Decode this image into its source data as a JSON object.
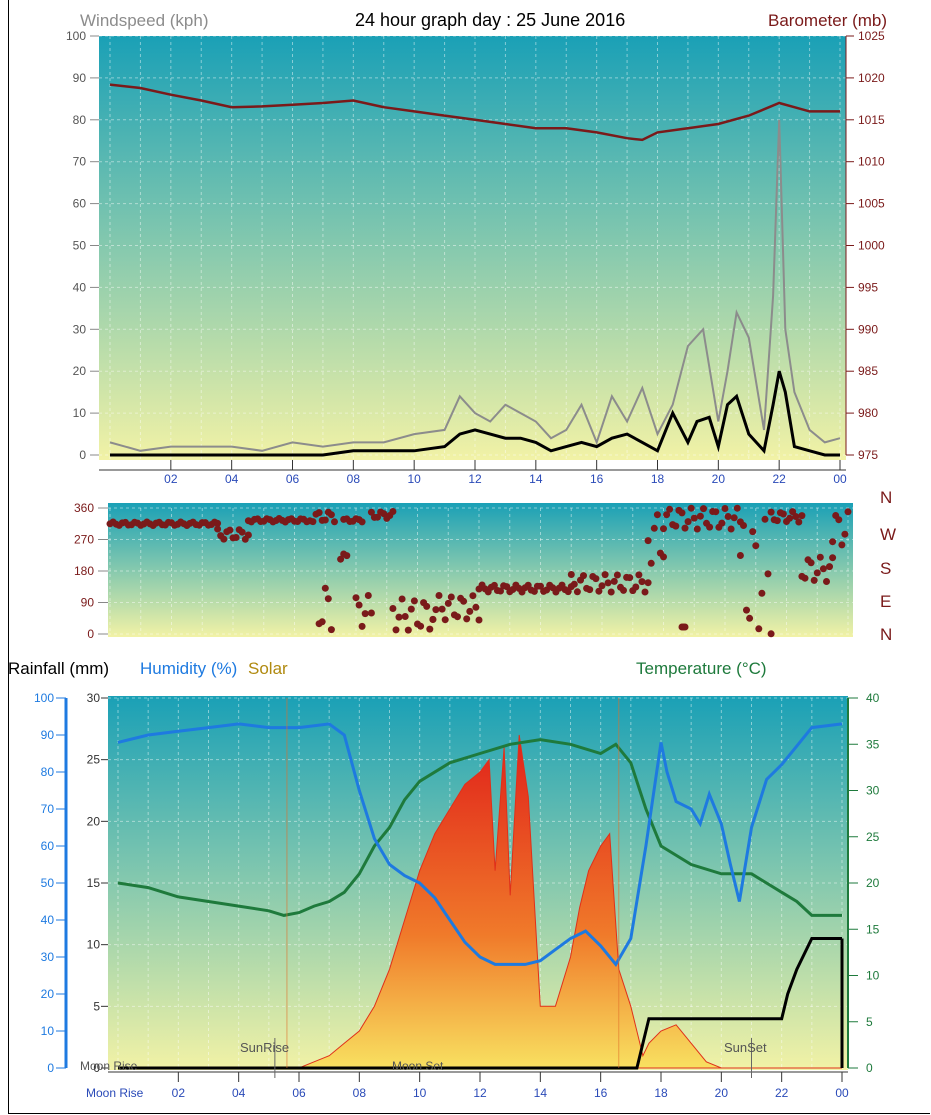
{
  "title": "24 hour graph day : 25 June 2016",
  "colors": {
    "barometer": "#7a1a1a",
    "wind_gust": "#8c8c8c",
    "wind_avg": "#000000",
    "direction": "#7a1a1a",
    "humidity": "#1e7ae0",
    "temperature": "#1e7a3c",
    "rain": "#000000",
    "solar": "#e0301a",
    "axis_blue": "#2a4ab8",
    "bg_top": "#1aa0b6",
    "bg_bottom": "#f2f2a6"
  },
  "chart_data": [
    {
      "type": "line",
      "title": "24 hour graph day : 25 June 2016",
      "ylabel": "Windspeed (kph)",
      "y2label": "Barometer (mb)",
      "x_tick_labels": [
        "02",
        "04",
        "06",
        "08",
        "10",
        "12",
        "14",
        "16",
        "18",
        "20",
        "22",
        "00"
      ],
      "x_range_hours": [
        0,
        24
      ],
      "ylim": [
        0,
        100
      ],
      "y2lim": [
        975,
        1025
      ],
      "y_ticks": [
        0,
        10,
        20,
        30,
        40,
        50,
        60,
        70,
        80,
        90,
        100
      ],
      "y2_ticks": [
        975,
        980,
        985,
        990,
        995,
        1000,
        1005,
        1010,
        1015,
        1020,
        1025
      ],
      "grid": true,
      "series": [
        {
          "name": "Barometer (mb)",
          "axis": "y2",
          "x": [
            0,
            1,
            2,
            3,
            4,
            5,
            6,
            7,
            8,
            9,
            10,
            11,
            12,
            13,
            14,
            15,
            16,
            17,
            17.5,
            18,
            19,
            20,
            21,
            22,
            22.5,
            23,
            24
          ],
          "values": [
            1019.2,
            1018.8,
            1018,
            1017.3,
            1016.5,
            1016.6,
            1016.8,
            1017,
            1017.3,
            1016.5,
            1016,
            1015.5,
            1015,
            1014.5,
            1014,
            1014,
            1013.5,
            1012.8,
            1012.6,
            1013.5,
            1014,
            1014.5,
            1015.5,
            1017,
            1016.5,
            1016,
            1016
          ]
        },
        {
          "name": "Wind gust",
          "axis": "y",
          "x": [
            0,
            1,
            2,
            3,
            4,
            5,
            6,
            7,
            8,
            9,
            10,
            11,
            11.5,
            12,
            12.5,
            13,
            13.5,
            14,
            14.5,
            15,
            15.5,
            16,
            16.5,
            17,
            17.5,
            18,
            18.5,
            19,
            19.5,
            20,
            20.3,
            20.6,
            21,
            21.5,
            21.8,
            22,
            22.2,
            22.5,
            23,
            23.5,
            24
          ],
          "values": [
            3,
            1,
            2,
            2,
            2,
            1,
            3,
            2,
            3,
            3,
            5,
            6,
            14,
            10,
            8,
            12,
            10,
            8,
            4,
            6,
            12,
            3,
            14,
            8,
            16,
            5,
            12,
            26,
            30,
            8,
            20,
            34,
            28,
            6,
            38,
            80,
            30,
            15,
            6,
            3,
            4
          ]
        },
        {
          "name": "Wind average",
          "axis": "y",
          "x": [
            0,
            1,
            2,
            3,
            4,
            5,
            6,
            7,
            8,
            9,
            10,
            11,
            11.5,
            12,
            12.5,
            13,
            13.5,
            14,
            14.5,
            15,
            15.5,
            16,
            16.5,
            17,
            17.5,
            18,
            18.5,
            19,
            19.3,
            19.7,
            20,
            20.3,
            20.6,
            21,
            21.5,
            21.8,
            22,
            22.2,
            22.5,
            23,
            23.5,
            24
          ],
          "values": [
            0,
            0,
            0,
            0,
            0,
            0,
            0,
            0,
            1,
            1,
            1,
            2,
            5,
            6,
            5,
            4,
            4,
            3,
            1,
            2,
            3,
            2,
            4,
            5,
            3,
            1,
            10,
            3,
            8,
            9,
            2,
            12,
            14,
            5,
            1,
            12,
            20,
            15,
            2,
            1,
            0,
            0
          ]
        }
      ]
    },
    {
      "type": "scatter",
      "ylabel": "Wind direction",
      "ylim": [
        0,
        360
      ],
      "y_ticks": [
        0,
        90,
        180,
        270,
        360
      ],
      "compass_labels": [
        "N",
        "W",
        "S",
        "E",
        "N"
      ],
      "x_range_hours": [
        0,
        24
      ],
      "segments": [
        {
          "x": [
            0,
            3.5
          ],
          "values": [
            310,
            320
          ]
        },
        {
          "x": [
            3.5,
            4.5
          ],
          "values": [
            270,
            300
          ]
        },
        {
          "x": [
            4.5,
            6.5
          ],
          "values": [
            320,
            330
          ]
        },
        {
          "x": [
            6.6,
            7.3
          ],
          "values": [
            320,
            350
          ]
        },
        {
          "x": [
            7.6,
            8.2
          ],
          "values": [
            320,
            330
          ]
        },
        {
          "x": [
            8.5,
            9.2
          ],
          "values": [
            330,
            350
          ]
        },
        {
          "x": [
            6.8,
            7.2
          ],
          "values": [
            10,
            140
          ]
        },
        {
          "x": [
            7.5,
            7.7
          ],
          "values": [
            210,
            230
          ]
        },
        {
          "x": [
            8.0,
            8.5
          ],
          "values": [
            20,
            110
          ]
        },
        {
          "x": [
            9.2,
            10.5
          ],
          "values": [
            10,
            100
          ]
        },
        {
          "x": [
            10.5,
            12
          ],
          "values": [
            40,
            110
          ]
        },
        {
          "x": [
            12,
            15
          ],
          "values": [
            120,
            140
          ]
        },
        {
          "x": [
            15,
            17.5
          ],
          "values": [
            120,
            170
          ]
        },
        {
          "x": [
            17.5,
            18
          ],
          "values": [
            200,
            350
          ]
        },
        {
          "x": [
            18,
            20.5
          ],
          "values": [
            300,
            360
          ]
        },
        {
          "x": [
            20.5,
            21.5
          ],
          "values": [
            0,
            330
          ]
        },
        {
          "x": [
            21.5,
            22.5
          ],
          "values": [
            320,
            350
          ]
        },
        {
          "x": [
            22.5,
            23.5
          ],
          "values": [
            150,
            220
          ]
        },
        {
          "x": [
            23.5,
            24
          ],
          "values": [
            250,
            350
          ]
        },
        {
          "x": [
            18.6,
            18.7
          ],
          "values": [
            20,
            20
          ]
        }
      ]
    },
    {
      "type": "area",
      "legend": [
        "Rainfall (mm)",
        "Humidity (%)",
        "Solar",
        "Temperature (°C)"
      ],
      "x_tick_labels": [
        "02",
        "04",
        "06",
        "08",
        "10",
        "12",
        "14",
        "16",
        "18",
        "20",
        "22",
        "00"
      ],
      "x_range_hours": [
        0,
        24
      ],
      "rain_ylim": [
        0,
        30
      ],
      "rain_ticks": [
        0,
        5,
        10,
        15,
        20,
        25,
        30
      ],
      "humidity_ylim": [
        0,
        100
      ],
      "humidity_ticks": [
        0,
        10,
        20,
        30,
        40,
        50,
        60,
        70,
        80,
        90,
        100
      ],
      "temp_ylim": [
        0,
        40
      ],
      "temp_ticks": [
        0,
        5,
        10,
        15,
        20,
        25,
        30,
        35,
        40
      ],
      "annotations": [
        "SunRise",
        "SunSet",
        "Moon Rise",
        "Moon Set"
      ],
      "series": [
        {
          "name": "Humidity (%)",
          "x": [
            0,
            1,
            2,
            3,
            4,
            5,
            6,
            7,
            7.5,
            8,
            8.5,
            9,
            9.5,
            10,
            10.5,
            11,
            11.5,
            12,
            12.5,
            13,
            13.5,
            14,
            14.5,
            15,
            15.5,
            16,
            16.5,
            17,
            17.5,
            18,
            18.2,
            18.5,
            19,
            19.3,
            19.6,
            20,
            20.3,
            20.6,
            21,
            21.5,
            22,
            22.5,
            23,
            24
          ],
          "values": [
            88,
            90,
            91,
            92,
            93,
            92,
            92,
            93,
            90,
            75,
            62,
            55,
            52,
            50,
            46,
            40,
            34,
            30,
            28,
            28,
            28,
            29,
            32,
            35,
            37,
            33,
            28,
            35,
            60,
            88,
            80,
            72,
            70,
            66,
            74,
            66,
            55,
            45,
            65,
            78,
            82,
            87,
            92,
            93
          ]
        },
        {
          "name": "Temperature (°C)",
          "x": [
            0,
            1,
            2,
            3,
            4,
            5,
            5.5,
            6,
            6.5,
            7,
            7.5,
            8,
            8.5,
            9,
            9.5,
            10,
            11,
            12,
            13,
            14,
            15,
            16,
            16.5,
            17,
            17.5,
            18,
            19,
            20,
            21,
            22,
            22.5,
            23,
            24
          ],
          "values": [
            20,
            19.5,
            18.5,
            18,
            17.5,
            17,
            16.5,
            16.8,
            17.5,
            18,
            19,
            21,
            24,
            26,
            29,
            31,
            33,
            34,
            35,
            35.5,
            35,
            34,
            35,
            33,
            28,
            24,
            22,
            21,
            21,
            19,
            18,
            16.5,
            16.5
          ]
        },
        {
          "name": "Rainfall (mm)",
          "x": [
            0,
            17.2,
            17.4,
            17.6,
            19,
            20,
            21,
            22,
            22.2,
            22.5,
            23,
            23.5,
            24
          ],
          "values": [
            0,
            0,
            2,
            4,
            4,
            4,
            4,
            4,
            6,
            8,
            10.5,
            10.5,
            10.5
          ]
        },
        {
          "name": "Solar",
          "axis": "rain",
          "x": [
            0,
            6,
            6.5,
            7,
            7.5,
            8,
            8.5,
            9,
            9.5,
            10,
            10.5,
            11,
            11.5,
            12,
            12.3,
            12.5,
            12.8,
            13,
            13.3,
            13.6,
            14,
            14.5,
            15,
            15.3,
            15.6,
            16,
            16.3,
            16.6,
            17,
            17.4,
            17.6,
            18,
            18.5,
            19,
            19.5,
            20,
            24
          ],
          "values": [
            0,
            0,
            0.5,
            1,
            2,
            3,
            5,
            8,
            12,
            16,
            19,
            21,
            23,
            24,
            25,
            16,
            26,
            14,
            27,
            22,
            5,
            5,
            9,
            13,
            16,
            18,
            19,
            8,
            5,
            1,
            2,
            3,
            3.5,
            2,
            0.5,
            0,
            0
          ]
        }
      ]
    }
  ]
}
